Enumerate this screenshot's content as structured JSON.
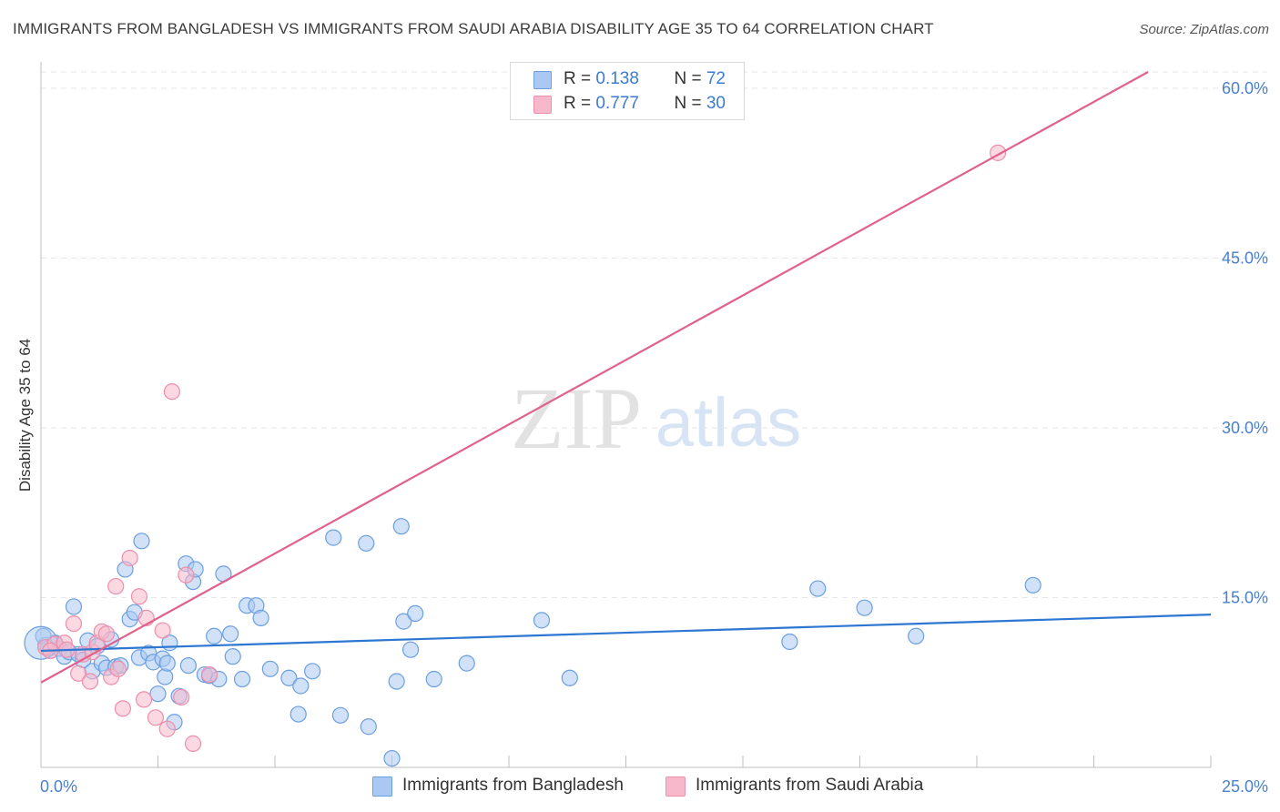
{
  "title": "IMMIGRANTS FROM BANGLADESH VS IMMIGRANTS FROM SAUDI ARABIA DISABILITY AGE 35 TO 64 CORRELATION CHART",
  "source": "Source: ZipAtlas.com",
  "watermark": {
    "zip": "ZIP",
    "atlas": "atlas"
  },
  "colors": {
    "blue_fill": "#aac9f2",
    "blue_stroke": "#6b9fe0",
    "blue_line": "#2d76d2",
    "pink_fill": "#f7b8cb",
    "pink_stroke": "#ec8fac",
    "pink_line": "#e0628c",
    "tick_label": "#4a80cc",
    "grid": "#e6e6e6"
  },
  "legend": {
    "rows": [
      {
        "r_label": "R = ",
        "r_value": "0.138",
        "n_label": "N = ",
        "n_value": "72"
      },
      {
        "r_label": "R = ",
        "r_value": "0.777",
        "n_label": "N = ",
        "n_value": "30"
      }
    ]
  },
  "bottom_legend": [
    "Immigrants from Bangladesh",
    "Immigrants from Saudi Arabia"
  ],
  "chart_data": {
    "type": "scatter",
    "title": "IMMIGRANTS FROM BANGLADESH VS IMMIGRANTS FROM SAUDI ARABIA DISABILITY AGE 35 TO 64 CORRELATION CHART",
    "xlabel": "",
    "ylabel": "Disability Age 35 to 64",
    "xlim": [
      0,
      25
    ],
    "ylim": [
      0,
      60
    ],
    "x_tick_labels": [
      "0.0%",
      "25.0%"
    ],
    "y_ticks": [
      15,
      30,
      45,
      60
    ],
    "y_tick_labels": [
      "15.0%",
      "30.0%",
      "45.0%",
      "60.0%"
    ],
    "x_minor_ticks": [
      0,
      2.5,
      5,
      7.5,
      10,
      12.5,
      15,
      17.5,
      20,
      22.5,
      25
    ],
    "series": [
      {
        "name": "Immigrants from Bangladesh",
        "color": "blue",
        "r": 0.138,
        "n": 72,
        "trend": {
          "x": [
            0,
            25
          ],
          "y": [
            10.3,
            13.5
          ]
        },
        "points": [
          [
            0.1,
            10.8
          ],
          [
            0.2,
            10.3
          ],
          [
            0.3,
            11.0
          ],
          [
            0.4,
            10.5
          ],
          [
            0.5,
            9.8
          ],
          [
            0.6,
            10.2
          ],
          [
            0.7,
            14.2
          ],
          [
            0.8,
            10.0
          ],
          [
            0.9,
            9.5
          ],
          [
            1.0,
            11.2
          ],
          [
            1.1,
            8.5
          ],
          [
            1.2,
            10.7
          ],
          [
            1.3,
            9.2
          ],
          [
            1.4,
            8.8
          ],
          [
            1.5,
            11.3
          ],
          [
            1.6,
            8.9
          ],
          [
            1.7,
            9.0
          ],
          [
            1.8,
            17.5
          ],
          [
            1.9,
            13.1
          ],
          [
            2.0,
            13.7
          ],
          [
            2.1,
            9.7
          ],
          [
            2.15,
            20.0
          ],
          [
            2.3,
            10.1
          ],
          [
            2.4,
            9.3
          ],
          [
            2.5,
            6.5
          ],
          [
            2.6,
            9.6
          ],
          [
            2.65,
            8.0
          ],
          [
            2.7,
            9.2
          ],
          [
            2.75,
            11.0
          ],
          [
            2.85,
            4.0
          ],
          [
            2.95,
            6.3
          ],
          [
            3.1,
            18.0
          ],
          [
            3.15,
            9.0
          ],
          [
            3.25,
            16.4
          ],
          [
            3.3,
            17.5
          ],
          [
            3.5,
            8.2
          ],
          [
            3.6,
            8.1
          ],
          [
            3.7,
            11.6
          ],
          [
            3.8,
            7.8
          ],
          [
            3.9,
            17.1
          ],
          [
            4.05,
            11.8
          ],
          [
            4.1,
            9.8
          ],
          [
            4.3,
            7.8
          ],
          [
            4.4,
            14.3
          ],
          [
            4.6,
            14.3
          ],
          [
            4.7,
            13.2
          ],
          [
            4.9,
            8.7
          ],
          [
            5.3,
            7.9
          ],
          [
            5.5,
            4.7
          ],
          [
            5.55,
            7.2
          ],
          [
            5.8,
            8.5
          ],
          [
            6.25,
            20.3
          ],
          [
            6.4,
            4.6
          ],
          [
            6.95,
            19.8
          ],
          [
            7.0,
            3.6
          ],
          [
            7.5,
            0.8
          ],
          [
            7.7,
            21.3
          ],
          [
            7.6,
            7.6
          ],
          [
            7.75,
            12.9
          ],
          [
            7.9,
            10.4
          ],
          [
            8.0,
            13.6
          ],
          [
            8.4,
            7.8
          ],
          [
            9.1,
            9.2
          ],
          [
            10.7,
            13.0
          ],
          [
            11.3,
            7.9
          ],
          [
            16.0,
            11.1
          ],
          [
            16.6,
            15.8
          ],
          [
            17.6,
            14.1
          ],
          [
            18.7,
            11.6
          ],
          [
            21.2,
            16.1
          ],
          [
            0.05,
            11.6
          ],
          [
            0.15,
            10.5
          ]
        ]
      },
      {
        "name": "Immigrants from Saudi Arabia",
        "color": "pink",
        "r": 0.777,
        "n": 30,
        "trend": {
          "x": [
            0,
            25
          ],
          "y": [
            7.5,
            64.5
          ]
        },
        "points": [
          [
            0.1,
            10.6
          ],
          [
            0.3,
            10.9
          ],
          [
            0.5,
            11.0
          ],
          [
            0.55,
            10.4
          ],
          [
            0.7,
            12.7
          ],
          [
            0.8,
            8.3
          ],
          [
            0.9,
            10.0
          ],
          [
            1.05,
            7.6
          ],
          [
            1.1,
            10.2
          ],
          [
            1.2,
            11.0
          ],
          [
            1.3,
            12.0
          ],
          [
            1.4,
            11.8
          ],
          [
            1.5,
            8.0
          ],
          [
            1.6,
            16.0
          ],
          [
            1.65,
            8.7
          ],
          [
            1.75,
            5.2
          ],
          [
            1.9,
            18.5
          ],
          [
            2.1,
            15.1
          ],
          [
            2.2,
            6.0
          ],
          [
            2.25,
            13.2
          ],
          [
            2.45,
            4.4
          ],
          [
            2.6,
            12.1
          ],
          [
            2.7,
            3.4
          ],
          [
            2.8,
            33.2
          ],
          [
            3.0,
            6.2
          ],
          [
            3.1,
            17.0
          ],
          [
            3.25,
            2.1
          ],
          [
            3.6,
            8.2
          ],
          [
            20.45,
            54.3
          ],
          [
            0.2,
            10.3
          ]
        ]
      }
    ]
  }
}
